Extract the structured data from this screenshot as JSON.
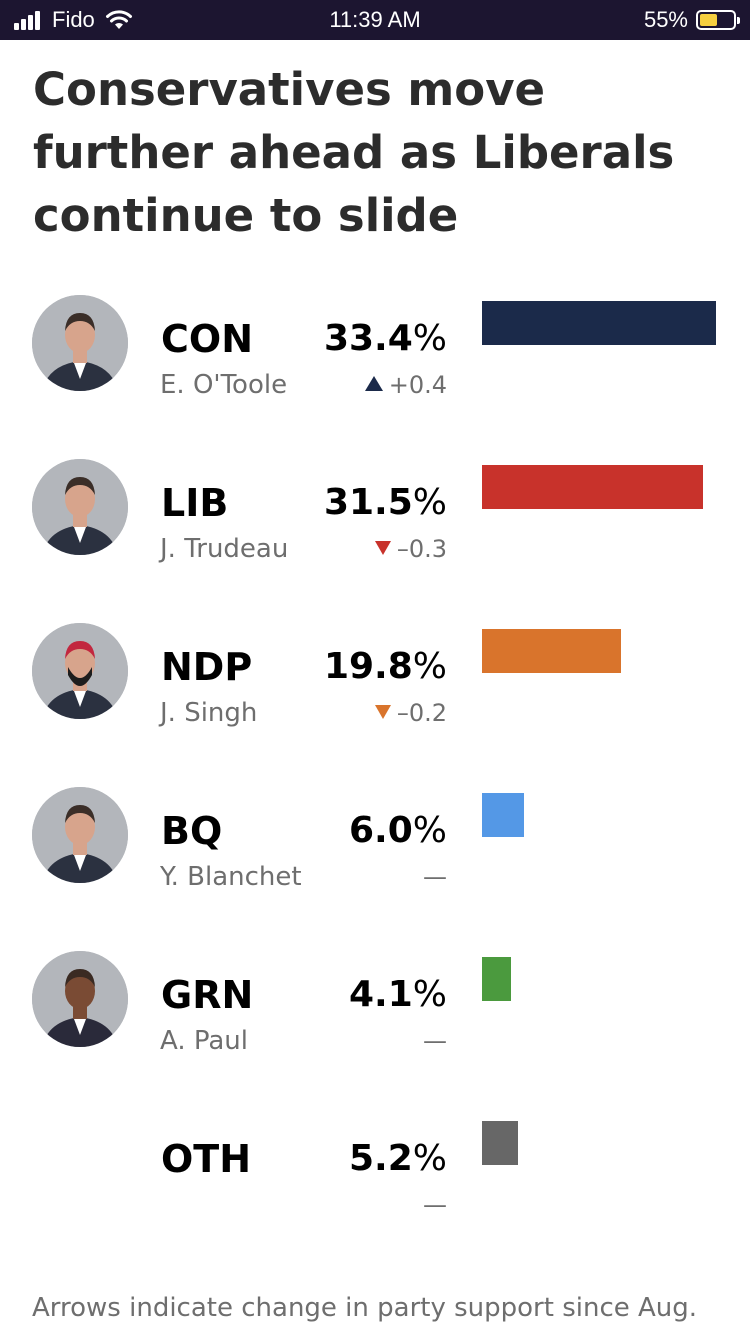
{
  "status_bar": {
    "carrier": "Fido",
    "time": "11:39 AM",
    "battery_percent": "55%",
    "battery_level": 0.55,
    "battery_color": "#f6cf3f",
    "icons": [
      "signal-icon",
      "wifi-icon",
      "battery-icon"
    ]
  },
  "title": "Conservatives move further ahead as Liberals continue to slide",
  "chart_data": {
    "type": "bar",
    "orientation": "horizontal",
    "title": "Conservatives move further ahead as Liberals continue to slide",
    "categories": [
      "CON",
      "LIB",
      "NDP",
      "BQ",
      "GRN",
      "OTH"
    ],
    "leaders": [
      "E. O'Toole",
      "J. Trudeau",
      "J. Singh",
      "Y. Blanchet",
      "A. Paul",
      ""
    ],
    "values": [
      33.4,
      31.5,
      19.8,
      6.0,
      4.1,
      5.2
    ],
    "value_labels": [
      "33.4%",
      "31.5%",
      "19.8%",
      "6.0%",
      "4.1%",
      "5.2%"
    ],
    "changes": [
      0.4,
      -0.3,
      -0.2,
      0,
      0,
      0
    ],
    "change_labels": [
      "+0.4",
      "–0.3",
      "–0.2",
      "—",
      "—",
      "—"
    ],
    "change_directions": [
      "up",
      "down",
      "down",
      "none",
      "none",
      "none"
    ],
    "colors": [
      "#1b2a4a",
      "#c8322b",
      "#d9742c",
      "#5498e6",
      "#4b9a3e",
      "#676767"
    ],
    "has_photo": [
      true,
      true,
      true,
      true,
      true,
      false
    ],
    "xlim": [
      0,
      33.4
    ],
    "grid": false,
    "legend": "none"
  },
  "footnote": "Arrows indicate change in party support since Aug."
}
